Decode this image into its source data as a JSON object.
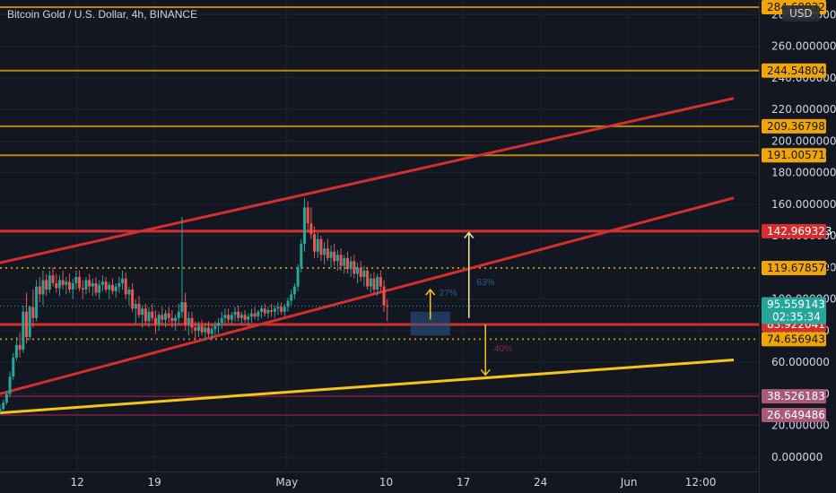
{
  "chart_data": {
    "type": "candlestick",
    "title": "Bitcoin Gold / U.S. Dollar, 4h, BINANCE",
    "currency": "USD",
    "countdown": "02:35:34",
    "ylim": [
      -10,
      295
    ],
    "y_ticks": [
      "0.000000",
      "20.000000",
      "40.000000",
      "60.000000",
      "80.000000",
      "100.000000",
      "120.000000",
      "140.000000",
      "160.000000",
      "180.000000",
      "200.000000",
      "220.000000",
      "240.000000",
      "260.000000",
      "280.000000"
    ],
    "y_tick_values": [
      0,
      20,
      40,
      60,
      80,
      100,
      120,
      140,
      160,
      180,
      200,
      220,
      240,
      260,
      280
    ],
    "x_ticks": [
      {
        "label": "12",
        "day": 12
      },
      {
        "label": "19",
        "day": 19
      },
      {
        "label": "May",
        "day": 31
      },
      {
        "label": "10",
        "day": 40
      },
      {
        "label": "17",
        "day": 47
      },
      {
        "label": "24",
        "day": 54
      },
      {
        "label": "Jun",
        "day": 62
      },
      {
        "label": "12:00",
        "day": 68.5
      }
    ],
    "levels": [
      {
        "value": 284.68832,
        "label": "284.68832",
        "style": "solid",
        "color": "#b8860b",
        "tag_bg": "#f0a500",
        "tag_fg": "#131722"
      },
      {
        "value": 244.548049,
        "label": "244.548049",
        "style": "solid",
        "color": "#b8860b",
        "tag_bg": "#f0a500",
        "tag_fg": "#131722"
      },
      {
        "value": 209.367982,
        "label": "209.367982",
        "style": "solid",
        "color": "#b8860b",
        "tag_bg": "#f0a500",
        "tag_fg": "#131722"
      },
      {
        "value": 191.00571,
        "label": "191.005710",
        "style": "solid",
        "color": "#b8860b",
        "tag_bg": "#f0a500",
        "tag_fg": "#131722"
      },
      {
        "value": 142.969323,
        "label": "142.969323",
        "style": "solid",
        "color": "#d32f2f",
        "tag_bg": "#d32f2f",
        "tag_fg": "#ffffff"
      },
      {
        "value": 119.678579,
        "label": "119.678579",
        "style": "dotted",
        "color": "#b8860b",
        "tag_bg": "#f0a500",
        "tag_fg": "#131722"
      },
      {
        "value": 83.922041,
        "label": "83.922041",
        "style": "solid",
        "color": "#d32f2f",
        "tag_bg": "#d32f2f",
        "tag_fg": "#ffffff"
      },
      {
        "value": 74.656943,
        "label": "74.656943",
        "style": "dotted",
        "color": "#b8860b",
        "tag_bg": "#f0a500",
        "tag_fg": "#131722"
      },
      {
        "value": 38.526183,
        "label": "38.526183",
        "style": "thin",
        "color": "#c2185b",
        "tag_bg": "#a85a78",
        "tag_fg": "#ffffff"
      },
      {
        "value": 26.649486,
        "label": "26.649486",
        "style": "thin",
        "color": "#c2185b",
        "tag_bg": "#a85a78",
        "tag_fg": "#ffffff"
      }
    ],
    "current_price": {
      "value": 95.559143,
      "label": "95.559143",
      "tag_bg": "#26a69a",
      "tag_fg": "#ffffff"
    },
    "trendlines": [
      {
        "from": [
          5,
          123
        ],
        "to": [
          71.5,
          227
        ],
        "color": "#d32f2f"
      },
      {
        "from": [
          5,
          40
        ],
        "to": [
          71.5,
          164
        ],
        "color": "#d32f2f"
      },
      {
        "from": [
          5,
          28
        ],
        "to": [
          71.5,
          61.5
        ],
        "color": "#f5c518"
      }
    ],
    "arrows": [
      {
        "x": 44,
        "from": 87,
        "to": 106,
        "color": "#f5c518",
        "pct": "27%",
        "pct_at": [
          44.8,
          102
        ],
        "pct_color": "#2a5a8a"
      },
      {
        "x": 47.5,
        "from": 88,
        "to": 142,
        "color": "#f5e6a0",
        "pct": "63%",
        "pct_at": [
          48.2,
          109
        ],
        "pct_color": "#2a5a8a"
      },
      {
        "x": 49,
        "from": 84,
        "to": 52,
        "color": "#f5c518",
        "pct": "40%",
        "pct_at": [
          49.8,
          67
        ],
        "pct_color": "#8a2a3a"
      }
    ],
    "box": {
      "x": [
        42.2,
        45.8
      ],
      "y": [
        77,
        92
      ],
      "color": "#2a5a8a"
    },
    "candles": [
      [
        5,
        28.5,
        33.5,
        27.5,
        30.5
      ],
      [
        5.3,
        30.5,
        36.5,
        29.5,
        34.5
      ],
      [
        5.6,
        34.5,
        42,
        33,
        40
      ],
      [
        5.9,
        40,
        54,
        38,
        51
      ],
      [
        6.2,
        51,
        66,
        49,
        63
      ],
      [
        6.5,
        63,
        76,
        61,
        71
      ],
      [
        6.8,
        71,
        79,
        63,
        68
      ],
      [
        7.1,
        68,
        96,
        66,
        92
      ],
      [
        7.4,
        92,
        104,
        72,
        76
      ],
      [
        7.7,
        76,
        96,
        74,
        95
      ],
      [
        8,
        95,
        106,
        82,
        88
      ],
      [
        8.3,
        88,
        112,
        86,
        108
      ],
      [
        8.6,
        108,
        114,
        98,
        103
      ],
      [
        8.9,
        103,
        118,
        96,
        112
      ],
      [
        9.2,
        112,
        116,
        102,
        106
      ],
      [
        9.5,
        106,
        118,
        104,
        115
      ],
      [
        9.8,
        115,
        120,
        108,
        110
      ],
      [
        10.1,
        110,
        116,
        104,
        107
      ],
      [
        10.4,
        107,
        115,
        102,
        112
      ],
      [
        10.7,
        112,
        118,
        106,
        109
      ],
      [
        11,
        109,
        114,
        103,
        111
      ],
      [
        11.3,
        111,
        116,
        104,
        106
      ],
      [
        11.6,
        106,
        113,
        100,
        110
      ],
      [
        11.9,
        110,
        118,
        106,
        114
      ],
      [
        12.2,
        114,
        118,
        105,
        107
      ],
      [
        12.5,
        107,
        112,
        100,
        106
      ],
      [
        12.8,
        106,
        114,
        103,
        112
      ],
      [
        13.1,
        112,
        116,
        104,
        108
      ],
      [
        13.4,
        108,
        113,
        102,
        110
      ],
      [
        13.7,
        110,
        114,
        102,
        104
      ],
      [
        14,
        104,
        112,
        100,
        109
      ],
      [
        14.3,
        109,
        115,
        105,
        111
      ],
      [
        14.6,
        111,
        114,
        104,
        106
      ],
      [
        14.9,
        106,
        111,
        100,
        109
      ],
      [
        15.2,
        109,
        113,
        103,
        105
      ],
      [
        15.5,
        105,
        110,
        101,
        108
      ],
      [
        15.8,
        108,
        114,
        104,
        110
      ],
      [
        16.1,
        110,
        118,
        106,
        113
      ],
      [
        16.4,
        113,
        117,
        100,
        103
      ],
      [
        16.7,
        103,
        108,
        96,
        106
      ],
      [
        17,
        106,
        110,
        92,
        94
      ],
      [
        17.3,
        94,
        100,
        84,
        97
      ],
      [
        17.6,
        97,
        102,
        88,
        90
      ],
      [
        17.9,
        90,
        96,
        82,
        94
      ],
      [
        18.2,
        94,
        97,
        84,
        86
      ],
      [
        18.5,
        86,
        95,
        82,
        92
      ],
      [
        18.8,
        92,
        97,
        86,
        88
      ],
      [
        19.1,
        88,
        93,
        78,
        84
      ],
      [
        19.4,
        84,
        92,
        80,
        90
      ],
      [
        19.7,
        90,
        95,
        84,
        87
      ],
      [
        20,
        87,
        93,
        82,
        91
      ],
      [
        20.3,
        91,
        95,
        85,
        88
      ],
      [
        20.6,
        88,
        93,
        82,
        86
      ],
      [
        20.9,
        86,
        90,
        80,
        88
      ],
      [
        21.2,
        88,
        97,
        84,
        92
      ],
      [
        21.5,
        92,
        152,
        88,
        98
      ],
      [
        21.8,
        98,
        104,
        80,
        84
      ],
      [
        22.1,
        84,
        92,
        77,
        88
      ],
      [
        22.4,
        88,
        92,
        78,
        82
      ],
      [
        22.7,
        82,
        86,
        74,
        80
      ],
      [
        23,
        80,
        86,
        76,
        83
      ],
      [
        23.3,
        83,
        87,
        77,
        79
      ],
      [
        23.6,
        79,
        85,
        74,
        82
      ],
      [
        23.9,
        82,
        86,
        76,
        78
      ],
      [
        24.2,
        78,
        84,
        74,
        81
      ],
      [
        24.5,
        81,
        86,
        77,
        83
      ],
      [
        24.8,
        83,
        88,
        78,
        85
      ],
      [
        25.1,
        85,
        92,
        81,
        88
      ],
      [
        25.4,
        88,
        94,
        84,
        90
      ],
      [
        25.7,
        90,
        94,
        85,
        87
      ],
      [
        26,
        87,
        92,
        84,
        90
      ],
      [
        26.3,
        90,
        95,
        86,
        92
      ],
      [
        26.6,
        92,
        96,
        86,
        88
      ],
      [
        26.9,
        88,
        92,
        84,
        90
      ],
      [
        27.2,
        90,
        93,
        85,
        87
      ],
      [
        27.5,
        87,
        91,
        83,
        89
      ],
      [
        27.8,
        89,
        94,
        85,
        91
      ],
      [
        28.1,
        91,
        95,
        87,
        89
      ],
      [
        28.4,
        89,
        93,
        86,
        92
      ],
      [
        28.7,
        92,
        96,
        88,
        94
      ],
      [
        29,
        94,
        97,
        89,
        91
      ],
      [
        29.3,
        91,
        95,
        88,
        93
      ],
      [
        29.6,
        93,
        97,
        89,
        92
      ],
      [
        29.9,
        92,
        96,
        88,
        94
      ],
      [
        30.2,
        94,
        98,
        90,
        95
      ],
      [
        30.5,
        95,
        98,
        90,
        92
      ],
      [
        30.8,
        92,
        97,
        89,
        95
      ],
      [
        31.1,
        95,
        101,
        92,
        99
      ],
      [
        31.4,
        99,
        106,
        96,
        103
      ],
      [
        31.7,
        103,
        110,
        100,
        108
      ],
      [
        32,
        108,
        122,
        105,
        120
      ],
      [
        32.3,
        120,
        138,
        117,
        135
      ],
      [
        32.6,
        135,
        164,
        130,
        158
      ],
      [
        32.9,
        158,
        162,
        142,
        148
      ],
      [
        33.2,
        148,
        158,
        138,
        141
      ],
      [
        33.5,
        141,
        146,
        126,
        130
      ],
      [
        33.8,
        130,
        142,
        126,
        138
      ],
      [
        34.1,
        138,
        140,
        124,
        128
      ],
      [
        34.4,
        128,
        136,
        122,
        132
      ],
      [
        34.7,
        132,
        138,
        124,
        126
      ],
      [
        35,
        126,
        134,
        120,
        130
      ],
      [
        35.3,
        130,
        135,
        121,
        124
      ],
      [
        35.6,
        124,
        131,
        118,
        128
      ],
      [
        35.9,
        128,
        132,
        118,
        121
      ],
      [
        36.2,
        121,
        128,
        116,
        126
      ],
      [
        36.5,
        126,
        130,
        116,
        119
      ],
      [
        36.8,
        119,
        127,
        114,
        124
      ],
      [
        37.1,
        124,
        128,
        113,
        116
      ],
      [
        37.4,
        116,
        123,
        110,
        120
      ],
      [
        37.7,
        120,
        124,
        111,
        114
      ],
      [
        38,
        114,
        121,
        108,
        118
      ],
      [
        38.3,
        118,
        120,
        106,
        108
      ],
      [
        38.6,
        108,
        116,
        104,
        113
      ],
      [
        38.9,
        113,
        117,
        103,
        106
      ],
      [
        39.2,
        106,
        116,
        102,
        114
      ],
      [
        39.5,
        114,
        118,
        105,
        108
      ],
      [
        39.8,
        108,
        112,
        92,
        96
      ],
      [
        40.1,
        96,
        100,
        86,
        95.56
      ]
    ]
  }
}
